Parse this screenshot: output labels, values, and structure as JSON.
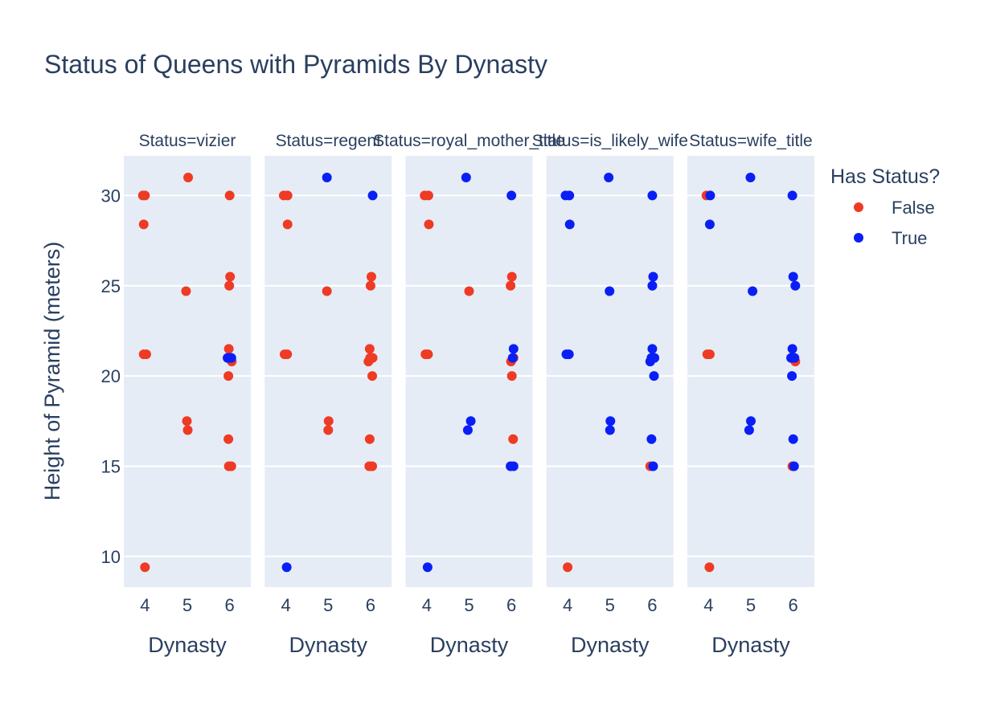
{
  "chart_data": {
    "type": "scatter",
    "title": "Status of Queens with Pyramids By Dynasty",
    "xlabel": "Dynasty",
    "ylabel": "Height of Pyramid (meters)",
    "x_ticks": [
      "4",
      "5",
      "6"
    ],
    "y_ticks": [
      10,
      15,
      20,
      25,
      30
    ],
    "ylim": [
      8.3,
      32.2
    ],
    "legend": {
      "title": "Has Status?",
      "placement": "right",
      "entries": [
        {
          "name": "False",
          "color": "#ef3a24"
        },
        {
          "name": "True",
          "color": "#0a1ff5"
        }
      ]
    },
    "grid": true,
    "facets": [
      {
        "label": "Status=vizier",
        "points": [
          {
            "x": 3.95,
            "y": 30,
            "status": "False"
          },
          {
            "x": 4.0,
            "y": 30,
            "status": "False"
          },
          {
            "x": 3.97,
            "y": 28.4,
            "status": "False"
          },
          {
            "x": 3.97,
            "y": 21.2,
            "status": "False"
          },
          {
            "x": 4.03,
            "y": 21.2,
            "status": "False"
          },
          {
            "x": 4.0,
            "y": 9.4,
            "status": "False"
          },
          {
            "x": 5.02,
            "y": 31,
            "status": "False"
          },
          {
            "x": 4.97,
            "y": 24.7,
            "status": "False"
          },
          {
            "x": 4.99,
            "y": 17.5,
            "status": "False"
          },
          {
            "x": 5.01,
            "y": 17,
            "status": "False"
          },
          {
            "x": 6.0,
            "y": 30,
            "status": "False"
          },
          {
            "x": 6.01,
            "y": 25.5,
            "status": "False"
          },
          {
            "x": 5.99,
            "y": 25,
            "status": "False"
          },
          {
            "x": 5.98,
            "y": 21.5,
            "status": "False"
          },
          {
            "x": 6.05,
            "y": 20.8,
            "status": "False"
          },
          {
            "x": 5.97,
            "y": 20,
            "status": "False"
          },
          {
            "x": 5.97,
            "y": 16.5,
            "status": "False"
          },
          {
            "x": 5.98,
            "y": 15,
            "status": "False"
          },
          {
            "x": 6.04,
            "y": 15,
            "status": "False"
          },
          {
            "x": 5.95,
            "y": 21,
            "status": "True"
          },
          {
            "x": 6.0,
            "y": 21,
            "status": "True"
          },
          {
            "x": 6.04,
            "y": 21,
            "status": "True"
          }
        ]
      },
      {
        "label": "Status=regent",
        "points": [
          {
            "x": 3.95,
            "y": 30,
            "status": "False"
          },
          {
            "x": 4.04,
            "y": 30,
            "status": "False"
          },
          {
            "x": 4.04,
            "y": 28.4,
            "status": "False"
          },
          {
            "x": 3.97,
            "y": 21.2,
            "status": "False"
          },
          {
            "x": 4.03,
            "y": 21.2,
            "status": "False"
          },
          {
            "x": 4.97,
            "y": 24.7,
            "status": "False"
          },
          {
            "x": 5.01,
            "y": 17.5,
            "status": "False"
          },
          {
            "x": 5.0,
            "y": 17,
            "status": "False"
          },
          {
            "x": 6.02,
            "y": 25.5,
            "status": "False"
          },
          {
            "x": 6.0,
            "y": 25,
            "status": "False"
          },
          {
            "x": 5.98,
            "y": 21.5,
            "status": "False"
          },
          {
            "x": 5.95,
            "y": 20.8,
            "status": "False"
          },
          {
            "x": 6.05,
            "y": 21,
            "status": "False"
          },
          {
            "x": 5.99,
            "y": 21,
            "status": "False"
          },
          {
            "x": 6.04,
            "y": 20,
            "status": "False"
          },
          {
            "x": 5.98,
            "y": 16.5,
            "status": "False"
          },
          {
            "x": 5.97,
            "y": 15,
            "status": "False"
          },
          {
            "x": 6.04,
            "y": 15,
            "status": "False"
          },
          {
            "x": 4.02,
            "y": 9.4,
            "status": "True"
          },
          {
            "x": 4.97,
            "y": 31,
            "status": "True"
          },
          {
            "x": 6.05,
            "y": 30,
            "status": "True"
          }
        ]
      },
      {
        "label": "Status=royal_mother_title",
        "points": [
          {
            "x": 3.95,
            "y": 30,
            "status": "False"
          },
          {
            "x": 4.04,
            "y": 30,
            "status": "False"
          },
          {
            "x": 4.05,
            "y": 28.4,
            "status": "False"
          },
          {
            "x": 3.97,
            "y": 21.2,
            "status": "False"
          },
          {
            "x": 4.03,
            "y": 21.2,
            "status": "False"
          },
          {
            "x": 5.0,
            "y": 24.7,
            "status": "False"
          },
          {
            "x": 6.01,
            "y": 25.5,
            "status": "False"
          },
          {
            "x": 5.98,
            "y": 25,
            "status": "False"
          },
          {
            "x": 6.05,
            "y": 21,
            "status": "False"
          },
          {
            "x": 5.99,
            "y": 20.8,
            "status": "False"
          },
          {
            "x": 6.01,
            "y": 20,
            "status": "False"
          },
          {
            "x": 6.04,
            "y": 16.5,
            "status": "False"
          },
          {
            "x": 4.02,
            "y": 9.4,
            "status": "True"
          },
          {
            "x": 4.93,
            "y": 31,
            "status": "True"
          },
          {
            "x": 5.04,
            "y": 17.5,
            "status": "True"
          },
          {
            "x": 4.97,
            "y": 17,
            "status": "True"
          },
          {
            "x": 6.0,
            "y": 30,
            "status": "True"
          },
          {
            "x": 6.05,
            "y": 21.5,
            "status": "True"
          },
          {
            "x": 6.03,
            "y": 21,
            "status": "True"
          },
          {
            "x": 5.98,
            "y": 15,
            "status": "True"
          },
          {
            "x": 6.05,
            "y": 15,
            "status": "True"
          }
        ]
      },
      {
        "label": "Status=is_likely_wife",
        "points": [
          {
            "x": 4.0,
            "y": 9.4,
            "status": "False"
          },
          {
            "x": 5.95,
            "y": 15,
            "status": "False"
          },
          {
            "x": 3.95,
            "y": 30,
            "status": "True"
          },
          {
            "x": 4.04,
            "y": 30,
            "status": "True"
          },
          {
            "x": 4.05,
            "y": 28.4,
            "status": "True"
          },
          {
            "x": 3.97,
            "y": 21.2,
            "status": "True"
          },
          {
            "x": 4.03,
            "y": 21.2,
            "status": "True"
          },
          {
            "x": 4.97,
            "y": 31,
            "status": "True"
          },
          {
            "x": 4.99,
            "y": 24.7,
            "status": "True"
          },
          {
            "x": 5.01,
            "y": 17.5,
            "status": "True"
          },
          {
            "x": 5.0,
            "y": 17,
            "status": "True"
          },
          {
            "x": 6.0,
            "y": 30,
            "status": "True"
          },
          {
            "x": 6.02,
            "y": 25.5,
            "status": "True"
          },
          {
            "x": 6.0,
            "y": 25,
            "status": "True"
          },
          {
            "x": 6.0,
            "y": 21.5,
            "status": "True"
          },
          {
            "x": 5.95,
            "y": 20.8,
            "status": "True"
          },
          {
            "x": 6.05,
            "y": 21,
            "status": "True"
          },
          {
            "x": 5.98,
            "y": 21,
            "status": "True"
          },
          {
            "x": 6.04,
            "y": 20,
            "status": "True"
          },
          {
            "x": 5.98,
            "y": 16.5,
            "status": "True"
          },
          {
            "x": 6.02,
            "y": 15,
            "status": "True"
          }
        ]
      },
      {
        "label": "Status=wife_title",
        "points": [
          {
            "x": 3.95,
            "y": 30,
            "status": "False"
          },
          {
            "x": 3.97,
            "y": 21.2,
            "status": "False"
          },
          {
            "x": 4.03,
            "y": 21.2,
            "status": "False"
          },
          {
            "x": 4.02,
            "y": 9.4,
            "status": "False"
          },
          {
            "x": 5.98,
            "y": 15,
            "status": "False"
          },
          {
            "x": 6.05,
            "y": 20.8,
            "status": "False"
          },
          {
            "x": 4.04,
            "y": 30,
            "status": "True"
          },
          {
            "x": 4.03,
            "y": 28.4,
            "status": "True"
          },
          {
            "x": 4.99,
            "y": 31,
            "status": "True"
          },
          {
            "x": 5.04,
            "y": 24.7,
            "status": "True"
          },
          {
            "x": 5.0,
            "y": 17.5,
            "status": "True"
          },
          {
            "x": 4.96,
            "y": 17,
            "status": "True"
          },
          {
            "x": 5.98,
            "y": 30,
            "status": "True"
          },
          {
            "x": 6.0,
            "y": 25.5,
            "status": "True"
          },
          {
            "x": 6.05,
            "y": 25,
            "status": "True"
          },
          {
            "x": 5.98,
            "y": 21.5,
            "status": "True"
          },
          {
            "x": 5.95,
            "y": 21,
            "status": "True"
          },
          {
            "x": 6.03,
            "y": 21,
            "status": "True"
          },
          {
            "x": 5.97,
            "y": 20,
            "status": "True"
          },
          {
            "x": 6.0,
            "y": 16.5,
            "status": "True"
          },
          {
            "x": 6.02,
            "y": 15,
            "status": "True"
          }
        ]
      }
    ]
  }
}
